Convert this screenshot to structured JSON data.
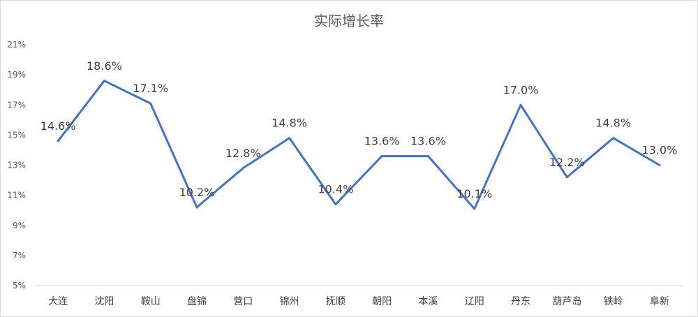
{
  "chart_data": {
    "type": "line",
    "title": "实际增长率",
    "xlabel": "",
    "ylabel": "",
    "categories": [
      "大连",
      "沈阳",
      "鞍山",
      "盘锦",
      "营口",
      "锦州",
      "抚顺",
      "朝阳",
      "本溪",
      "辽阳",
      "丹东",
      "葫芦岛",
      "铁岭",
      "阜新"
    ],
    "series": [
      {
        "values": [
          14.6,
          18.6,
          17.1,
          10.2,
          12.8,
          14.8,
          10.4,
          13.6,
          13.6,
          10.1,
          17.0,
          12.2,
          14.8,
          13.0
        ],
        "labels": [
          "14.6%",
          "18.6%",
          "17.1%",
          "10.2%",
          "12.8%",
          "14.8%",
          "10.4%",
          "13.6%",
          "13.6%",
          "10.1%",
          "17.0%",
          "12.2%",
          "14.8%",
          "13.0%"
        ]
      }
    ],
    "ylim": [
      5,
      21
    ],
    "yticks": [
      "5%",
      "7%",
      "9%",
      "11%",
      "13%",
      "15%",
      "17%",
      "19%",
      "21%"
    ],
    "grid": false,
    "line_color": "#4472C4"
  }
}
